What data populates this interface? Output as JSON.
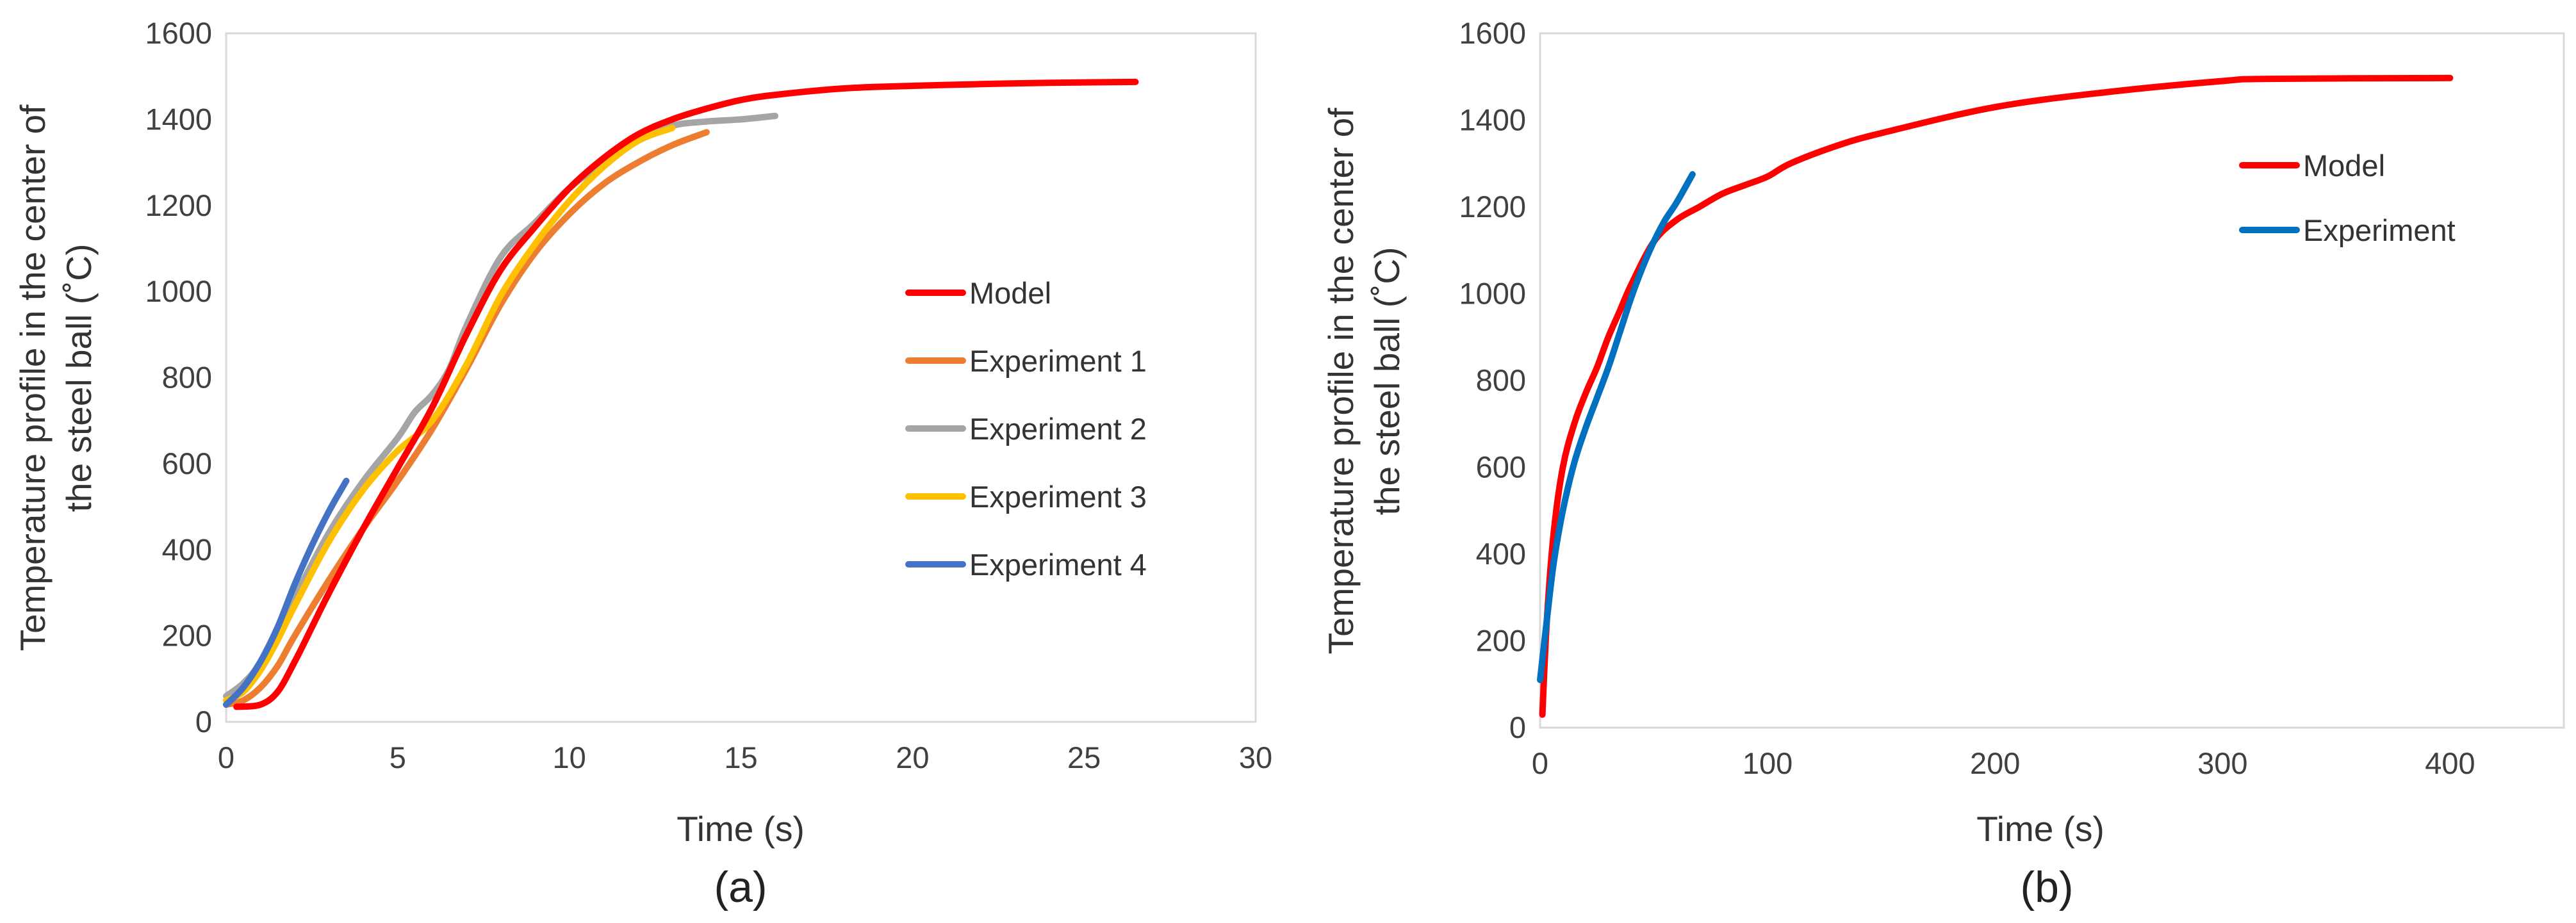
{
  "chart_data": [
    {
      "type": "line",
      "caption": "(a)",
      "title": "",
      "xlabel": "Time (s)",
      "ylabel": [
        "Temperature profile in the center of",
        "the steel ball (˚C)"
      ],
      "xlim": [
        0,
        30
      ],
      "ylim": [
        0,
        1600
      ],
      "xticks": [
        "0",
        "5",
        "10",
        "15",
        "20",
        "25",
        "30"
      ],
      "yticks": [
        "0",
        "200",
        "400",
        "600",
        "800",
        "1000",
        "1200",
        "1400",
        "1600"
      ],
      "grid": false,
      "legend_position": "right",
      "series": [
        {
          "name": "Model",
          "color": "#ff0000",
          "x": [
            0.3,
            1,
            1.5,
            2,
            2.5,
            3,
            4,
            5,
            6,
            7,
            8,
            9,
            10,
            11,
            12,
            13,
            14,
            15,
            16,
            18,
            20,
            22,
            24,
            26.5
          ],
          "y": [
            35,
            40,
            70,
            140,
            220,
            300,
            450,
            590,
            730,
            900,
            1050,
            1150,
            1240,
            1310,
            1365,
            1400,
            1425,
            1445,
            1457,
            1472,
            1478,
            1482,
            1485,
            1487
          ]
        },
        {
          "name": "Experiment 1",
          "color": "#ed7d31",
          "x": [
            0,
            0.5,
            1,
            1.5,
            2,
            3,
            4,
            5,
            6,
            7,
            8,
            9,
            10,
            11,
            12,
            13,
            14
          ],
          "y": [
            40,
            50,
            80,
            130,
            200,
            330,
            450,
            560,
            680,
            820,
            970,
            1090,
            1180,
            1250,
            1300,
            1340,
            1370
          ]
        },
        {
          "name": "Experiment 2",
          "color": "#a5a5a5",
          "x": [
            0,
            0.5,
            1,
            2,
            3,
            4,
            5,
            5.5,
            6,
            6.5,
            7,
            8,
            9,
            10,
            11,
            12,
            13,
            14,
            15,
            16
          ],
          "y": [
            60,
            90,
            140,
            290,
            440,
            560,
            660,
            720,
            760,
            820,
            920,
            1080,
            1160,
            1240,
            1300,
            1350,
            1385,
            1395,
            1400,
            1408
          ]
        },
        {
          "name": "Experiment 3",
          "color": "#ffc000",
          "x": [
            0,
            0.5,
            1,
            1.5,
            2,
            3,
            4,
            5,
            6,
            7,
            8,
            9,
            10,
            11,
            12,
            13
          ],
          "y": [
            50,
            70,
            120,
            190,
            270,
            420,
            540,
            630,
            700,
            830,
            990,
            1110,
            1210,
            1290,
            1350,
            1380
          ]
        },
        {
          "name": "Experiment 4",
          "color": "#4472c4",
          "x": [
            0,
            0.5,
            1,
            1.5,
            2,
            2.5,
            3,
            3.5
          ],
          "y": [
            40,
            80,
            140,
            220,
            320,
            410,
            490,
            560
          ]
        }
      ]
    },
    {
      "type": "line",
      "caption": "(b)",
      "title": "",
      "xlabel": "Time (s)",
      "ylabel": [
        "Temperature profile in the center of",
        "the steel ball (˚C)"
      ],
      "xlim": [
        0,
        450
      ],
      "ylim": [
        0,
        1600
      ],
      "xticks": [
        "0",
        "100",
        "200",
        "300",
        "400"
      ],
      "yticks": [
        "0",
        "200",
        "400",
        "600",
        "800",
        "1000",
        "1200",
        "1400",
        "1600"
      ],
      "grid": false,
      "legend_position": "top-right",
      "series": [
        {
          "name": "Model",
          "color": "#ff0000",
          "x": [
            1,
            3,
            6,
            10,
            15,
            20,
            25,
            30,
            35,
            40,
            50,
            60,
            70,
            80,
            90,
            100,
            110,
            130,
            150,
            200,
            250,
            300,
            320,
            400
          ],
          "y": [
            30,
            250,
            450,
            600,
            700,
            770,
            830,
            900,
            960,
            1020,
            1120,
            1170,
            1200,
            1230,
            1250,
            1270,
            1300,
            1340,
            1370,
            1430,
            1465,
            1490,
            1495,
            1497
          ]
        },
        {
          "name": "Experiment",
          "color": "#0070c0",
          "x": [
            0,
            3,
            6,
            10,
            15,
            20,
            25,
            30,
            35,
            40,
            45,
            50,
            55,
            60,
            67
          ],
          "y": [
            110,
            250,
            380,
            500,
            610,
            690,
            760,
            830,
            910,
            990,
            1060,
            1120,
            1170,
            1210,
            1275
          ]
        }
      ]
    }
  ]
}
